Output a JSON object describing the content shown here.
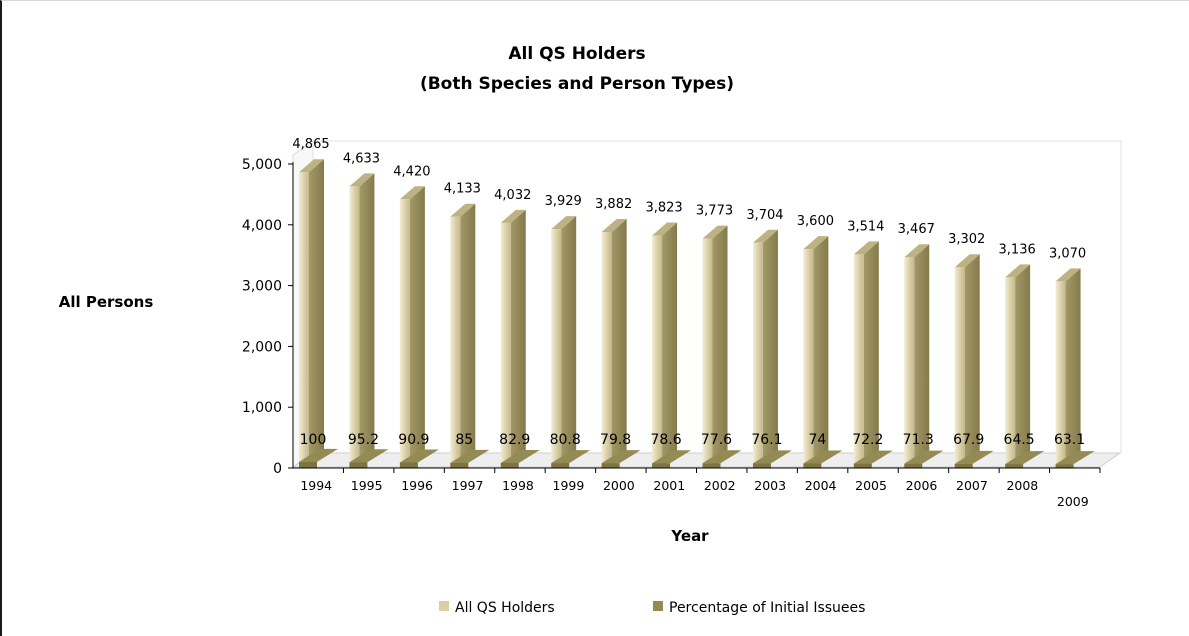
{
  "chart_data": {
    "type": "bar",
    "title": "All QS Holders",
    "subtitle": "(Both Species and Person Types)",
    "xlabel": "Year",
    "ylabel": "All Persons",
    "ylim": [
      0,
      5000
    ],
    "yticks": [
      "0",
      "1,000",
      "2,000",
      "3,000",
      "4,000",
      "5,000"
    ],
    "categories": [
      "1994",
      "1995",
      "1996",
      "1997",
      "1998",
      "1999",
      "2000",
      "2001",
      "2002",
      "2003",
      "2004",
      "2005",
      "2006",
      "2007",
      "2008",
      "2009"
    ],
    "series": [
      {
        "name": "All QS Holders",
        "values": [
          4865,
          4633,
          4420,
          4133,
          4032,
          3929,
          3882,
          3823,
          3773,
          3704,
          3600,
          3514,
          3467,
          3302,
          3136,
          3070
        ],
        "labels": [
          "4,865",
          "4,633",
          "4,420",
          "4,133",
          "4,032",
          "3,929",
          "3,882",
          "3,823",
          "3,773",
          "3,704",
          "3,600",
          "3,514",
          "3,467",
          "3,302",
          "3,136",
          "3,070"
        ],
        "color": "#d8cfa8"
      },
      {
        "name": "Percentage of Initial Issuees",
        "values": [
          100,
          95.2,
          90.9,
          85,
          82.9,
          80.8,
          79.8,
          78.6,
          77.6,
          76.1,
          74,
          72.2,
          71.3,
          67.9,
          64.5,
          63.1
        ],
        "labels": [
          "100",
          "95.2",
          "90.9",
          "85",
          "82.9",
          "80.8",
          "79.8",
          "78.6",
          "77.6",
          "76.1",
          "74",
          "72.2",
          "71.3",
          "67.9",
          "64.5",
          "63.1"
        ],
        "color": "#948a54"
      }
    ],
    "legend": "bottom",
    "grid": false
  }
}
